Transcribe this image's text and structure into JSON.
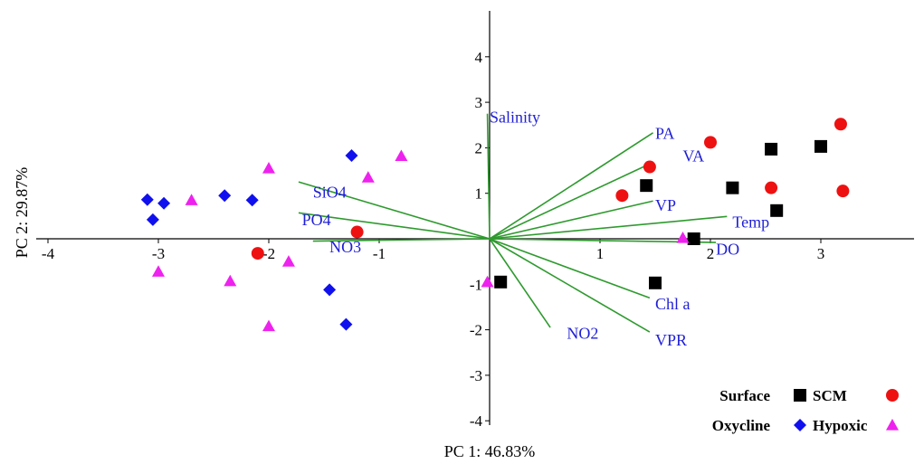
{
  "chart_data": {
    "type": "scatter",
    "subtype": "pca-biplot",
    "xlabel": "PC 1: 46.83%",
    "ylabel": "PC 2: 29.87%",
    "xlim": [
      -4.05,
      4.0
    ],
    "ylim": [
      -4.1,
      5.0
    ],
    "x_ticks": [
      -4,
      -3,
      -2,
      -1,
      1,
      2,
      3
    ],
    "y_ticks": [
      -4,
      -3,
      -2,
      -1,
      1,
      2,
      3,
      4
    ],
    "grid": false,
    "legend_position": "bottom-right",
    "colors": {
      "vector": "#2e9a2e",
      "label": "#1f1fd6",
      "black": "#000000",
      "red": "#ee1111",
      "blue": "#1010ee",
      "magenta": "#ee22ee"
    },
    "vectors": [
      {
        "label": "Salinity",
        "x": -0.02,
        "y": 2.75
      },
      {
        "label": "PA",
        "x": 1.48,
        "y": 2.33
      },
      {
        "label": "VA",
        "x": 1.48,
        "y": 1.68
      },
      {
        "label": "VP",
        "x": 1.48,
        "y": 0.83
      },
      {
        "label": "Temp",
        "x": 2.15,
        "y": 0.49
      },
      {
        "label": "DO",
        "x": 2.05,
        "y": -0.08
      },
      {
        "label": "Chl a",
        "x": 1.45,
        "y": -1.3
      },
      {
        "label": "VPR",
        "x": 1.45,
        "y": -2.05
      },
      {
        "label": "NO2",
        "x": 0.55,
        "y": -1.95
      },
      {
        "label": "SiO4",
        "x": -1.73,
        "y": 1.25
      },
      {
        "label": "PO4",
        "x": -1.73,
        "y": 0.57
      },
      {
        "label": "NO3",
        "x": -1.6,
        "y": -0.05
      }
    ],
    "vector_label_positions": [
      {
        "label": "Salinity",
        "x": 0.0,
        "y": 2.55
      },
      {
        "label": "PA",
        "x": 1.5,
        "y": 2.2
      },
      {
        "label": "VA",
        "x": 1.75,
        "y": 1.7
      },
      {
        "label": "VP",
        "x": 1.5,
        "y": 0.62
      },
      {
        "label": "Temp",
        "x": 2.2,
        "y": 0.25
      },
      {
        "label": "DO",
        "x": 2.05,
        "y": -0.35
      },
      {
        "label": "Chl a",
        "x": 1.5,
        "y": -1.55
      },
      {
        "label": "VPR",
        "x": 1.5,
        "y": -2.35
      },
      {
        "label": "NO2",
        "x": 0.7,
        "y": -2.2
      },
      {
        "label": "SiO4",
        "x": -1.6,
        "y": 0.9
      },
      {
        "label": "PO4",
        "x": -1.7,
        "y": 0.3
      },
      {
        "label": "NO3",
        "x": -1.45,
        "y": -0.3
      }
    ],
    "series": [
      {
        "depth": "Surface",
        "group": "SCM",
        "marker": "square",
        "color": "#000000",
        "points": [
          [
            0.1,
            -0.95
          ],
          [
            1.42,
            1.17
          ],
          [
            1.5,
            -0.97
          ],
          [
            1.85,
            0.0
          ],
          [
            2.2,
            1.12
          ],
          [
            2.55,
            1.97
          ],
          [
            2.6,
            0.62
          ],
          [
            3.0,
            2.03
          ]
        ]
      },
      {
        "depth": "Surface",
        "group": "SCM",
        "marker": "circle",
        "color": "#ee1111",
        "points": [
          [
            -2.1,
            -0.32
          ],
          [
            -1.2,
            0.15
          ],
          [
            1.2,
            0.95
          ],
          [
            1.45,
            1.58
          ],
          [
            2.0,
            2.12
          ],
          [
            2.55,
            1.12
          ],
          [
            3.18,
            2.52
          ],
          [
            3.2,
            1.05
          ]
        ]
      },
      {
        "depth": "Oxycline",
        "group": "Hypoxic",
        "marker": "diamond",
        "color": "#1010ee",
        "points": [
          [
            -3.1,
            0.86
          ],
          [
            -3.05,
            0.42
          ],
          [
            -2.95,
            0.78
          ],
          [
            -2.4,
            0.95
          ],
          [
            -2.15,
            0.85
          ],
          [
            -1.45,
            -1.12
          ],
          [
            -1.3,
            -1.88
          ],
          [
            -1.25,
            1.83
          ]
        ]
      },
      {
        "depth": "Oxycline",
        "group": "Hypoxic",
        "marker": "triangle",
        "color": "#ee22ee",
        "points": [
          [
            -3.0,
            -0.72
          ],
          [
            -2.7,
            0.85
          ],
          [
            -2.35,
            -0.93
          ],
          [
            -2.0,
            1.55
          ],
          [
            -2.0,
            -1.92
          ],
          [
            -1.82,
            -0.5
          ],
          [
            -1.1,
            1.35
          ],
          [
            -0.8,
            1.82
          ],
          [
            -0.02,
            -0.95
          ],
          [
            1.75,
            0.02
          ]
        ]
      }
    ],
    "legend": {
      "rows": [
        {
          "label": "Surface",
          "markers": [
            "square",
            "circle"
          ],
          "colors": [
            "#000000",
            "#ee1111"
          ],
          "text": "SCM"
        },
        {
          "label": "Oxycline",
          "markers": [
            "diamond",
            "triangle"
          ],
          "colors": [
            "#1010ee",
            "#ee22ee"
          ],
          "text": "Hypoxic"
        }
      ]
    }
  }
}
